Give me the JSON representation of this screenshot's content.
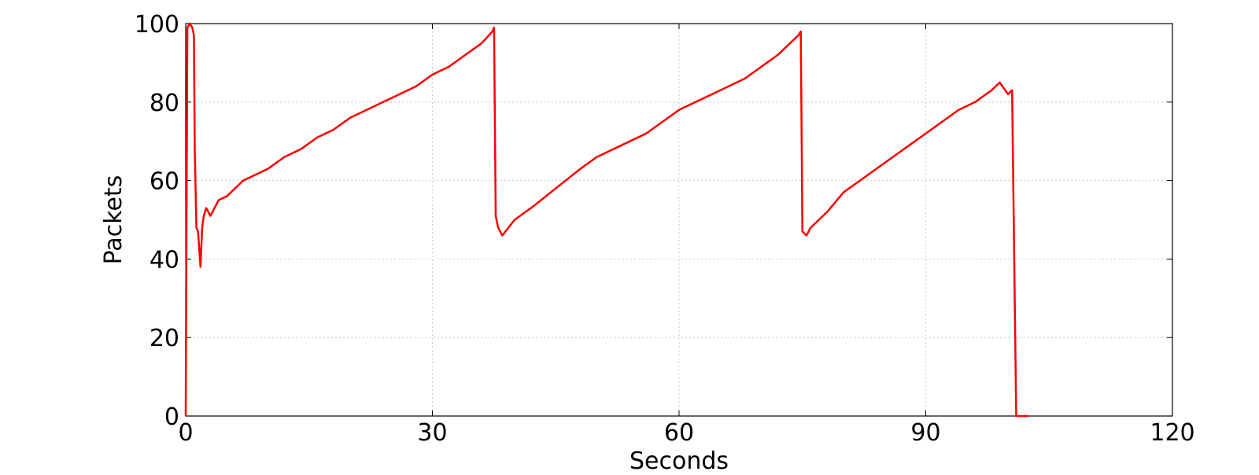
{
  "chart_data": {
    "type": "line",
    "xlabel": "Seconds",
    "ylabel": "Packets",
    "xlim": [
      0,
      120
    ],
    "ylim": [
      0,
      100
    ],
    "xticks": [
      0,
      30,
      60,
      90,
      120
    ],
    "yticks": [
      0,
      20,
      40,
      60,
      80,
      100
    ],
    "xtick_labels": [
      "0",
      "30",
      "60",
      "90",
      "120"
    ],
    "ytick_labels": [
      "0",
      "20",
      "40",
      "60",
      "80",
      "100"
    ],
    "grid": true,
    "line_color": "#ff0000",
    "series": [
      {
        "x": [
          0,
          0.2,
          0.5,
          0.8,
          1.0,
          1.1,
          1.3,
          1.5,
          1.8,
          2.0,
          2.2,
          2.5,
          3.0,
          3.5,
          4.0,
          5.0,
          6.0,
          7.0,
          8.0,
          10.0,
          12.0,
          14.0,
          16.0,
          18.0,
          20.0,
          22.0,
          24.0,
          26.0,
          28.0,
          30.0,
          32.0,
          34.0,
          36.0,
          37.3,
          37.5,
          37.7,
          38.0,
          38.5,
          40.0,
          42.0,
          45.0,
          48.0,
          50.0,
          53.0,
          56.0,
          58.0,
          60.0,
          62.0,
          65.0,
          68.0,
          70.0,
          72.0,
          73.5,
          74.5,
          74.8,
          75.0,
          75.5,
          76.0,
          78.0,
          80.0,
          82.0,
          84.0,
          86.0,
          88.0,
          90.0,
          92.0,
          94.0,
          96.0,
          98.0,
          99.0,
          100.0,
          100.5,
          101.0,
          101.5,
          102.0,
          102.5
        ],
        "y": [
          0,
          99,
          100,
          99,
          97,
          68,
          48,
          47,
          38,
          48,
          51,
          53,
          51,
          53,
          55,
          56,
          58,
          60,
          61,
          63,
          66,
          68,
          71,
          73,
          76,
          78,
          80,
          82,
          84,
          87,
          89,
          92,
          95,
          98,
          99,
          51,
          48,
          46,
          50,
          53,
          58,
          63,
          66,
          69,
          72,
          75,
          78,
          80,
          83,
          86,
          89,
          92,
          95,
          97,
          98,
          47,
          46,
          48,
          52,
          57,
          60,
          63,
          66,
          69,
          72,
          75,
          78,
          80,
          83,
          85,
          82,
          83,
          0,
          0,
          0,
          0
        ]
      }
    ]
  }
}
